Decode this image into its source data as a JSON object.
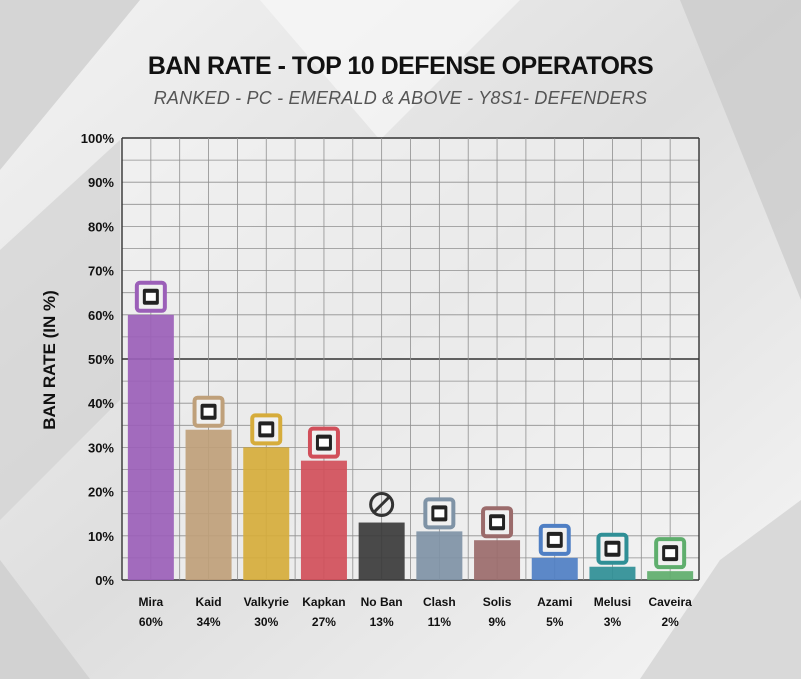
{
  "header": {
    "title": "BAN RATE - TOP 10 DEFENSE OPERATORS",
    "subtitle": "RANKED - PC - EMERALD & ABOVE - Y8S1- DEFENDERS"
  },
  "chart_data": {
    "type": "bar",
    "ylabel": "BAN RATE (IN %)",
    "xlabel": "",
    "ylim": [
      0,
      100
    ],
    "yticks": [
      "0%",
      "10%",
      "20%",
      "30%",
      "40%",
      "50%",
      "60%",
      "70%",
      "80%",
      "90%",
      "100%"
    ],
    "grid": true,
    "categories": [
      "Mira",
      "Kaid",
      "Valkyrie",
      "Kapkan",
      "No Ban",
      "Clash",
      "Solis",
      "Azami",
      "Melusi",
      "Caveira"
    ],
    "value_labels": [
      "60%",
      "34%",
      "30%",
      "27%",
      "13%",
      "11%",
      "9%",
      "5%",
      "3%",
      "2%"
    ],
    "values": [
      60,
      34,
      30,
      27,
      13,
      11,
      9,
      5,
      3,
      2
    ],
    "colors": [
      "#9b5fb8",
      "#bfa07a",
      "#d6ac3b",
      "#d14f5a",
      "#3b3b3b",
      "#7f93a6",
      "#9b6b6b",
      "#4f7fc4",
      "#2f8f96",
      "#5fae6d"
    ],
    "icons": [
      "mira-icon",
      "kaid-icon",
      "valkyrie-icon",
      "kapkan-icon",
      "no-ban-icon",
      "clash-icon",
      "solis-icon",
      "azami-icon",
      "melusi-icon",
      "caveira-icon"
    ]
  }
}
